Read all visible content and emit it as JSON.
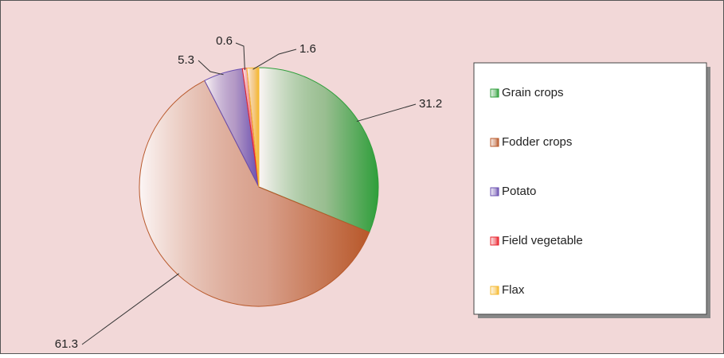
{
  "chart_data": {
    "type": "pie",
    "categories": [
      "Grain crops",
      "Fodder crops",
      "Potato",
      "Field vegetable",
      "Flax"
    ],
    "values": [
      31.2,
      61.3,
      5.3,
      0.6,
      1.6
    ],
    "colors": [
      "#2e9e3a",
      "#b8582a",
      "#6a4fb0",
      "#e8202a",
      "#f5b82e"
    ],
    "legend": "right"
  }
}
